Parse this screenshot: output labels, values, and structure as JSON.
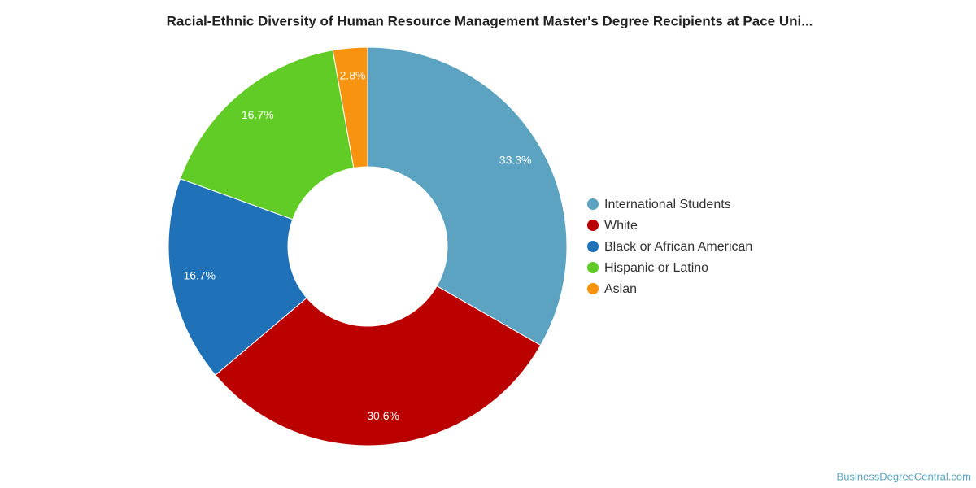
{
  "chart_data": {
    "type": "donut",
    "title": "Racial-Ethnic Diversity of Human Resource Management Master's Degree Recipients at Pace Uni...",
    "categories": [
      "International Students",
      "White",
      "Black or African American",
      "Hispanic or Latino",
      "Asian"
    ],
    "values": [
      33.3,
      30.6,
      16.7,
      16.7,
      2.8
    ],
    "value_labels": [
      "33.3%",
      "30.6%",
      "16.7%",
      "16.7%",
      "2.8%"
    ],
    "colors": [
      "#5ba3c0",
      "#bb0000",
      "#1f72b8",
      "#62cc26",
      "#f7930f"
    ],
    "legend": "right",
    "source": "BusinessDegreeCentral.com"
  }
}
